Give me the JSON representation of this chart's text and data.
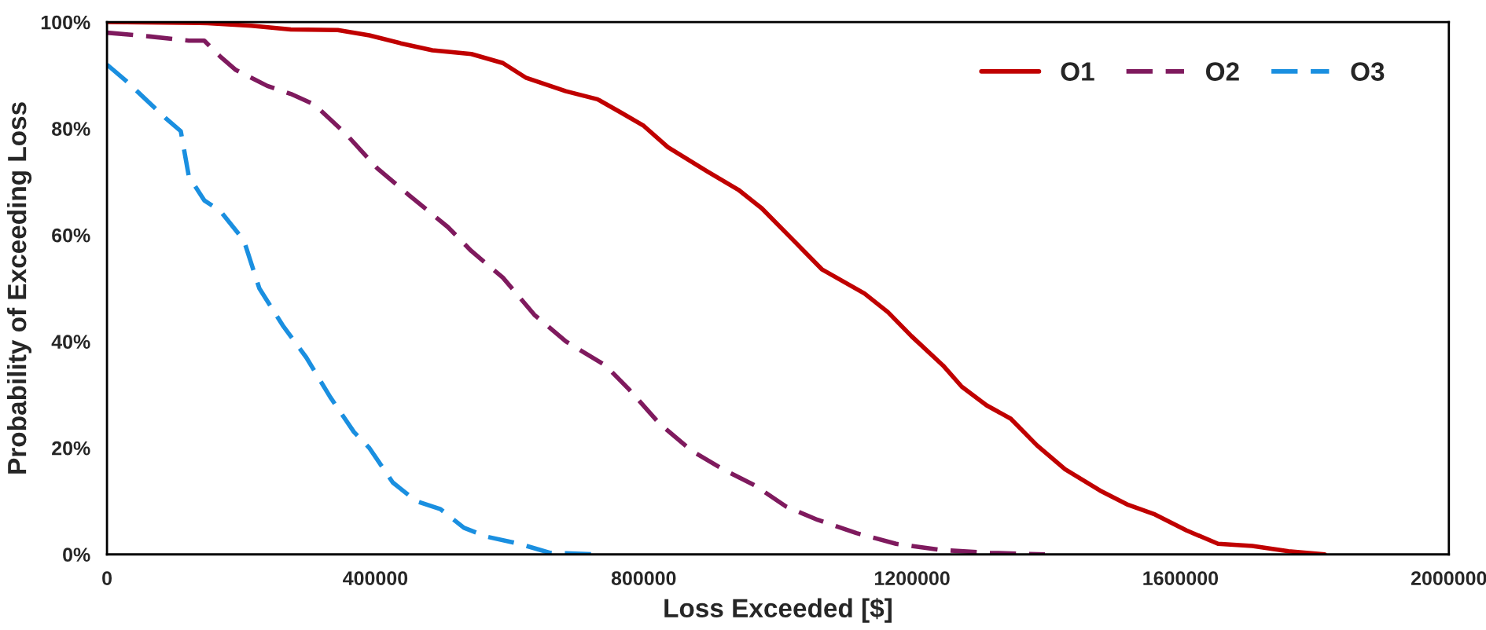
{
  "chart_data": {
    "type": "line",
    "xlabel": "Loss Exceeded [$]",
    "ylabel": "Probability of Exceeding Loss",
    "xlim": [
      0,
      2000000
    ],
    "xticks": [
      0,
      400000,
      800000,
      1200000,
      1600000,
      2000000
    ],
    "ylim": [
      0,
      100
    ],
    "yticks": [
      {
        "value": 0,
        "label": "0%"
      },
      {
        "value": 20,
        "label": "20%"
      },
      {
        "value": 40,
        "label": "40%"
      },
      {
        "value": 60,
        "label": "60%"
      },
      {
        "value": 80,
        "label": "80%"
      },
      {
        "value": 100,
        "label": "100%"
      }
    ],
    "grid": false,
    "legend": "top right",
    "marker": "none",
    "series": [
      {
        "name": "O1",
        "color": "#c00000",
        "line_style": "solid",
        "x": [
          0,
          150000,
          215000,
          274000,
          344000,
          391000,
          438000,
          485000,
          543000,
          590000,
          625000,
          684000,
          731000,
          766000,
          800000,
          836000,
          894000,
          941000,
          976000,
          1023000,
          1066000,
          1129000,
          1164000,
          1199000,
          1246000,
          1274000,
          1311000,
          1347000,
          1386000,
          1428000,
          1480000,
          1522000,
          1562000,
          1609000,
          1656000,
          1707000,
          1761000,
          1815000
        ],
        "values": [
          100,
          99.8,
          99.3,
          98.6,
          98.5,
          97.5,
          96,
          94.7,
          94,
          92.3,
          89.5,
          87,
          85.5,
          83,
          80.5,
          76.5,
          72,
          68.5,
          65,
          59,
          53.5,
          49,
          45.5,
          41,
          35.5,
          31.5,
          28,
          25.5,
          20.5,
          16,
          12,
          9.3,
          7.5,
          4.5,
          2,
          1.6,
          0.6,
          0
        ]
      },
      {
        "name": "O2",
        "color": "#7f1a5e",
        "line_style": "dashed",
        "x": [
          0,
          63000,
          122000,
          145000,
          169000,
          192000,
          239000,
          274000,
          309000,
          356000,
          403000,
          450000,
          508000,
          543000,
          590000,
          637000,
          684000,
          743000,
          778000,
          824000,
          871000,
          918000,
          965000,
          1012000,
          1059000,
          1117000,
          1176000,
          1246000,
          1316000,
          1398000
        ],
        "values": [
          98,
          97.3,
          96.5,
          96.5,
          93.5,
          91,
          88,
          86.5,
          84.5,
          79,
          72.5,
          67.5,
          61.5,
          57,
          52,
          45,
          40,
          35.5,
          31,
          24.5,
          19.5,
          16,
          13,
          9,
          6.5,
          4,
          2,
          0.8,
          0.3,
          0
        ]
      },
      {
        "name": "O3",
        "color": "#1a8fe0",
        "line_style": "dashed",
        "x": [
          0,
          28000,
          87000,
          110000,
          122000,
          145000,
          169000,
          204000,
          227000,
          262000,
          297000,
          333000,
          368000,
          391000,
          426000,
          461000,
          497000,
          532000,
          567000,
          614000,
          660000,
          731000
        ],
        "values": [
          92,
          89,
          82,
          79.5,
          71,
          66.5,
          64.5,
          59,
          50,
          43,
          37,
          29.5,
          23,
          20,
          13.5,
          10,
          8.5,
          5,
          3.3,
          2,
          0.3,
          0
        ]
      }
    ]
  }
}
